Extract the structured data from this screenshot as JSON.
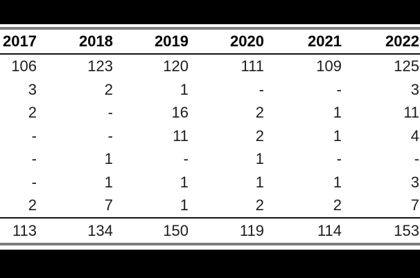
{
  "chart_data": {
    "type": "table",
    "title": "",
    "columns": [
      "2017",
      "2018",
      "2019",
      "2020",
      "2021",
      "2022"
    ],
    "rows": [
      [
        "106",
        "123",
        "120",
        "111",
        "109",
        "125"
      ],
      [
        "3",
        "2",
        "1",
        "-",
        "-",
        "3"
      ],
      [
        "2",
        "-",
        "16",
        "2",
        "1",
        "11"
      ],
      [
        "-",
        "-",
        "11",
        "2",
        "1",
        "4"
      ],
      [
        "-",
        "1",
        "-",
        "1",
        "-",
        "-"
      ],
      [
        "-",
        "1",
        "1",
        "1",
        "1",
        "3"
      ],
      [
        "2",
        "7",
        "1",
        "2",
        "2",
        "7"
      ]
    ],
    "totals": [
      "113",
      "134",
      "150",
      "119",
      "114",
      "153"
    ],
    "layout_hints": {
      "alignment": "right",
      "header_bold": true,
      "top_and_bottom_letterbox": "black bars",
      "rules": [
        "gray top rule",
        "dark rule under header",
        "dark rule above totals",
        "gray bottom rule"
      ]
    }
  },
  "colors": {
    "background": "#ffffff",
    "letterbox_bar": "#000000",
    "rule_gray": "#7d7d7d",
    "rule_dark": "#111111",
    "text": "#1c1c1c",
    "header_text": "#000000"
  }
}
